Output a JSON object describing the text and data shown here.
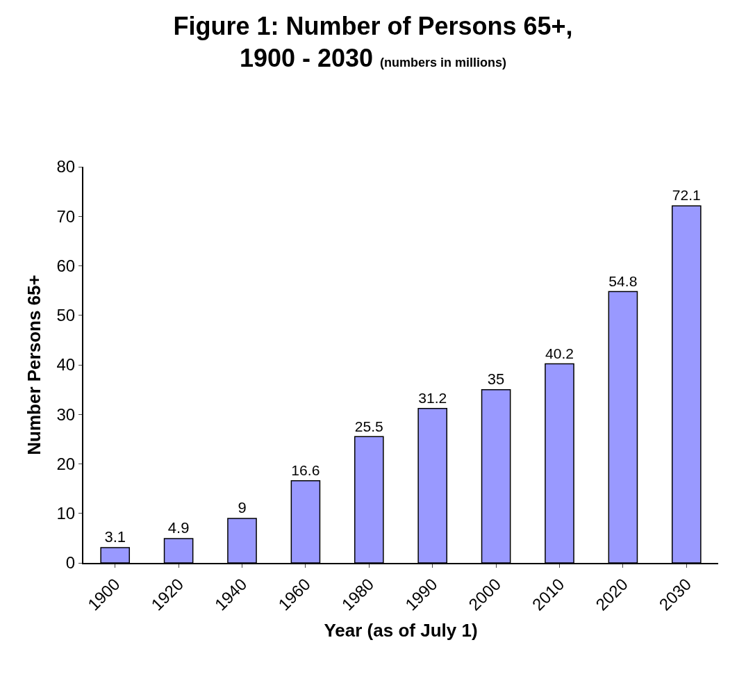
{
  "chart_data": {
    "type": "bar",
    "title": "Figure 1: Number of Persons 65+,\n1900 - 2030",
    "subtitle": "(numbers in millions)",
    "xlabel": "Year (as of July 1)",
    "ylabel": "Number Persons 65+",
    "categories": [
      "1900",
      "1920",
      "1940",
      "1960",
      "1980",
      "1990",
      "2000",
      "2010",
      "2020",
      "2030"
    ],
    "values": [
      3.1,
      4.9,
      9,
      16.6,
      25.5,
      31.2,
      35,
      40.2,
      54.8,
      72.1
    ],
    "color": "#9999ff",
    "ylim": [
      0,
      80
    ],
    "yticks": [
      0,
      10,
      20,
      30,
      40,
      50,
      60,
      70,
      80
    ],
    "data_labels": true
  }
}
